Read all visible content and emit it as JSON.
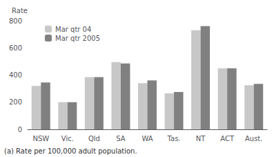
{
  "chart_data": {
    "type": "bar",
    "ylabel": "Rate",
    "annotations": [
      "(a) Rate per 100,000 adult population."
    ],
    "categories": [
      "NSW",
      "Vic.",
      "Qld",
      "SA",
      "WA",
      "Tas.",
      "NT",
      "ACT",
      "Aust."
    ],
    "series": [
      {
        "name": "Mar qtr 04",
        "color": "#c8c8c8",
        "values": [
          320,
          200,
          385,
          495,
          340,
          265,
          730,
          450,
          325
        ]
      },
      {
        "name": "Mar qtr 2005",
        "color": "#808080",
        "values": [
          345,
          200,
          385,
          485,
          360,
          275,
          760,
          450,
          335
        ]
      }
    ],
    "ylim": [
      0,
      800
    ],
    "yticks": [
      0,
      200,
      400,
      600,
      800
    ],
    "grid": false,
    "legend": "upper left"
  }
}
